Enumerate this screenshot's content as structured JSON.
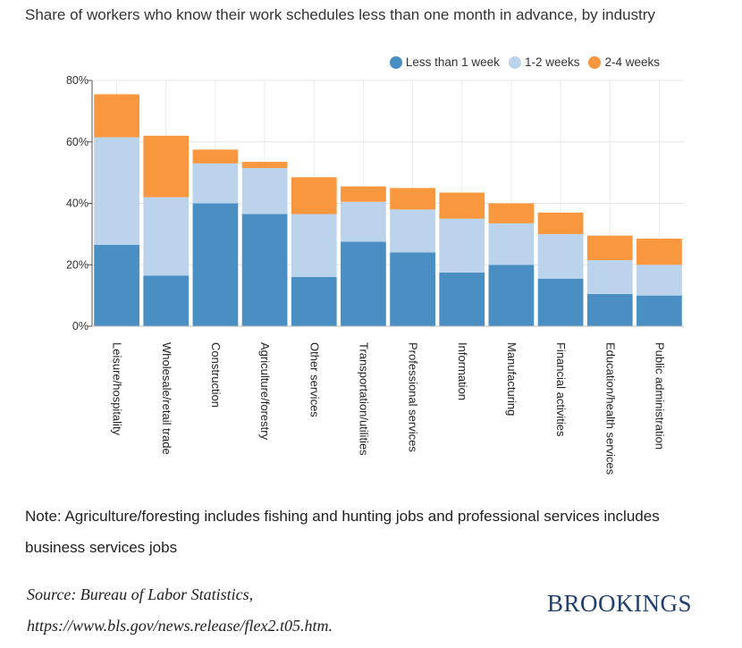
{
  "title": "Share of workers who know their work schedules less than one month in advance, by industry",
  "note": "Note: Agriculture/foresting includes fishing and hunting jobs and professional services includes business services jobs",
  "source": {
    "line1": "Source: Bureau of Labor Statistics,",
    "line2": "https://www.bls.gov/news.release/flex2.t05.htm."
  },
  "brand": "BROOKINGS",
  "chart_data": {
    "type": "bar",
    "stacked": true,
    "categories": [
      "Leisure/hospitality",
      "Wholesale/retail trade",
      "Construction",
      "Agriculture/forestry",
      "Other services",
      "Transportation/utilities",
      "Professional services",
      "Information",
      "Manufacturing",
      "Financial activities",
      "Education/health services",
      "Public administration"
    ],
    "series": [
      {
        "name": "Less than 1 week",
        "color": "#4a8fc3",
        "values": [
          26.5,
          16.5,
          40.0,
          36.5,
          16.0,
          27.5,
          24.0,
          17.5,
          20.0,
          15.5,
          10.5,
          10.0
        ]
      },
      {
        "name": "1-2 weeks",
        "color": "#bcd3ec",
        "values": [
          35.0,
          25.5,
          13.0,
          15.0,
          20.5,
          13.0,
          14.0,
          17.5,
          13.5,
          14.5,
          11.0,
          10.0
        ]
      },
      {
        "name": "2-4 weeks",
        "color": "#f8973e",
        "values": [
          14.0,
          20.0,
          4.5,
          2.0,
          12.0,
          5.0,
          7.0,
          8.5,
          6.5,
          7.0,
          8.0,
          8.5
        ]
      }
    ],
    "y_ticks": [
      "0%",
      "20%",
      "40%",
      "60%",
      "80%"
    ],
    "ylim": [
      0,
      80
    ],
    "grid": true,
    "legend_position": "top-right"
  }
}
